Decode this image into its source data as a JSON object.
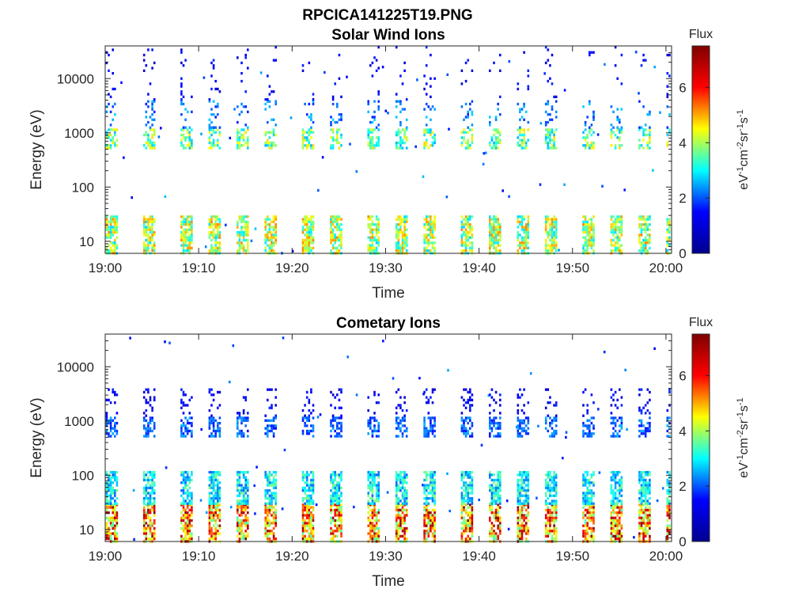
{
  "figure_title": "RPCICA141225T19.PNG",
  "colors": {
    "colormap": [
      "#00008f",
      "#0000ff",
      "#00ffff",
      "#ffff00",
      "#ff0000",
      "#800000"
    ]
  },
  "chart_data": [
    {
      "type": "heatmap",
      "title": "Solar Wind Ions",
      "xlabel": "Time",
      "ylabel": "Energy (eV)",
      "x_ticks": [
        "19:00",
        "19:10",
        "19:20",
        "19:30",
        "19:40",
        "19:50",
        "20:00"
      ],
      "xlim": [
        "19:00",
        "20:00"
      ],
      "y_scale": "log",
      "y_ticks": [
        "10",
        "100",
        "1000",
        "10000"
      ],
      "ylim": [
        6,
        40000
      ],
      "colorbar": {
        "label": "Flux",
        "unit_label": "eV-1cm-2sr-1s-1",
        "range": [
          0,
          7.5
        ],
        "ticks": [
          "0",
          "2",
          "4",
          "6"
        ]
      },
      "scan_times_min": [
        0,
        4,
        8,
        11,
        14,
        17,
        21,
        24,
        28,
        31,
        34,
        38,
        41,
        44,
        47,
        51,
        54,
        57,
        60
      ],
      "bands": [
        {
          "energy_range_eV": [
            6,
            30
          ],
          "typical_flux": 4.5
        },
        {
          "energy_range_eV": [
            500,
            1200
          ],
          "typical_flux": 4.0
        },
        {
          "energy_range_eV": [
            1200,
            4000
          ],
          "typical_flux": 2.0
        },
        {
          "energy_range_eV": [
            4000,
            40000
          ],
          "typical_flux": 1.0
        }
      ]
    },
    {
      "type": "heatmap",
      "title": "Cometary Ions",
      "xlabel": "Time",
      "ylabel": "Energy (eV)",
      "x_ticks": [
        "19:00",
        "19:10",
        "19:20",
        "19:30",
        "19:40",
        "19:50",
        "20:00"
      ],
      "xlim": [
        "19:00",
        "20:00"
      ],
      "y_scale": "log",
      "y_ticks": [
        "10",
        "100",
        "1000",
        "10000"
      ],
      "ylim": [
        6,
        40000
      ],
      "colorbar": {
        "label": "Flux",
        "unit_label": "eV-1cm-2sr-1s-1",
        "range": [
          0,
          7.5
        ],
        "ticks": [
          "0",
          "2",
          "4",
          "6"
        ]
      },
      "scan_times_min": [
        0,
        4,
        8,
        11,
        14,
        17,
        21,
        24,
        28,
        31,
        34,
        38,
        41,
        44,
        47,
        51,
        54,
        57,
        60
      ],
      "bands": [
        {
          "energy_range_eV": [
            6,
            30
          ],
          "typical_flux": 6.0
        },
        {
          "energy_range_eV": [
            30,
            120
          ],
          "typical_flux": 3.0
        },
        {
          "energy_range_eV": [
            500,
            1200
          ],
          "typical_flux": 1.8
        },
        {
          "energy_range_eV": [
            1200,
            4000
          ],
          "typical_flux": 1.0
        }
      ]
    }
  ]
}
